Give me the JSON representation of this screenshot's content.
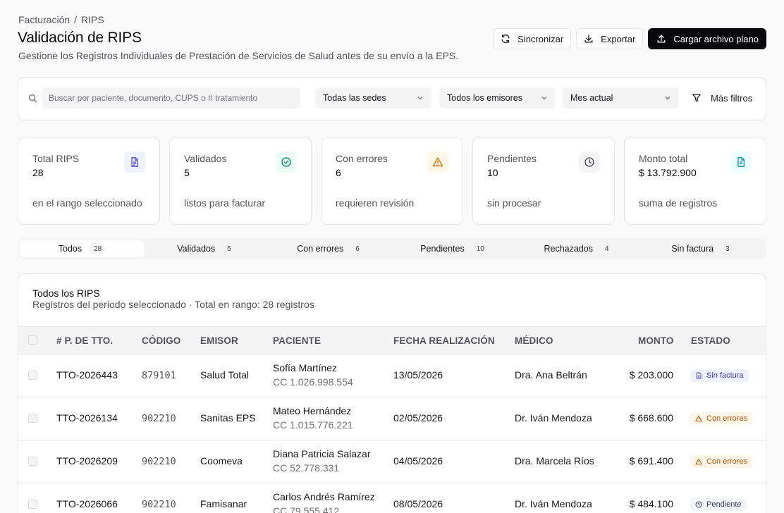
{
  "breadcrumb": {
    "parent": "Facturación",
    "separator": "/",
    "current": "RIPS"
  },
  "header": {
    "title": "Validación de RIPS",
    "subtitle": "Gestione los Registros Individuales de Prestación de Servicios de Salud antes de su envío a la EPS."
  },
  "actions": {
    "sync_label": "Sincronizar",
    "export_label": "Exportar",
    "upload_label": "Cargar archivo plano"
  },
  "filters": {
    "search_placeholder": "Buscar por paciente, documento, CUPS o # tratamiento",
    "sede": "Todas las sedes",
    "emisor": "Todos los emisores",
    "periodo": "Mes actual",
    "more_label": "Más filtros"
  },
  "stats": [
    {
      "label": "Total RIPS",
      "value": "28",
      "note": "en el rango seleccionado",
      "icon": "file-icon",
      "color": "#4f46e5",
      "bg": "#eef2ff"
    },
    {
      "label": "Validados",
      "value": "5",
      "note": "listos para facturar",
      "icon": "check-circle-icon",
      "color": "#059669",
      "bg": "#ecfdf5"
    },
    {
      "label": "Con errores",
      "value": "6",
      "note": "requieren revisión",
      "icon": "warning-icon",
      "color": "#d97706",
      "bg": "#fef6e7"
    },
    {
      "label": "Pendientes",
      "value": "10",
      "note": "sin procesar",
      "icon": "clock-icon",
      "color": "#52525b",
      "bg": "#f4f4f5"
    },
    {
      "label": "Monto total",
      "value": "$ 13.792.900",
      "note": "suma de registros",
      "icon": "document-icon",
      "color": "#0891b2",
      "bg": "#ecfeff"
    }
  ],
  "tabs": [
    {
      "label": "Todos",
      "count": "28"
    },
    {
      "label": "Validados",
      "count": "5"
    },
    {
      "label": "Con errores",
      "count": "6"
    },
    {
      "label": "Pendientes",
      "count": "10"
    },
    {
      "label": "Rechazados",
      "count": "4"
    },
    {
      "label": "Sin factura",
      "count": "3"
    }
  ],
  "table": {
    "title": "Todos los RIPS",
    "subtitle": "Registros del periodo seleccionado · Total en rango: 28 registros",
    "columns": [
      "# P. DE TTO.",
      "CÓDIGO",
      "EMISOR",
      "PACIENTE",
      "FECHA REALIZACIÓN",
      "MÉDICO",
      "MONTO",
      "ESTADO"
    ],
    "rows": [
      {
        "id": "TTO-2026443",
        "code": "879101",
        "emisor": "Salud Total",
        "patient": "Sofía Martínez",
        "doc": "CC 1.026.998.554",
        "date": "13/05/2026",
        "doctor": "Dra. Ana Beltrán",
        "amount": "$ 203.000",
        "status": "Sin factura",
        "status_type": "sinfactura"
      },
      {
        "id": "TTO-2026134",
        "code": "902210",
        "emisor": "Sanitas EPS",
        "patient": "Mateo Hernández",
        "doc": "CC 1.015.776.221",
        "date": "02/05/2026",
        "doctor": "Dr. Iván Mendoza",
        "amount": "$ 668.600",
        "status": "Con errores",
        "status_type": "errores"
      },
      {
        "id": "TTO-2026209",
        "code": "902210",
        "emisor": "Coomeva",
        "patient": "Diana Patricia Salazar",
        "doc": "CC 52.778.331",
        "date": "04/05/2026",
        "doctor": "Dra. Marcela Ríos",
        "amount": "$ 691.400",
        "status": "Con errores",
        "status_type": "errores"
      },
      {
        "id": "TTO-2026066",
        "code": "902210",
        "emisor": "Famisanar",
        "patient": "Carlos Andrés Ramírez",
        "doc": "CC 79.555.412",
        "date": "08/05/2026",
        "doctor": "Dr. Iván Mendoza",
        "amount": "$ 484.100",
        "status": "Pendiente",
        "status_type": "pendiente"
      }
    ]
  }
}
